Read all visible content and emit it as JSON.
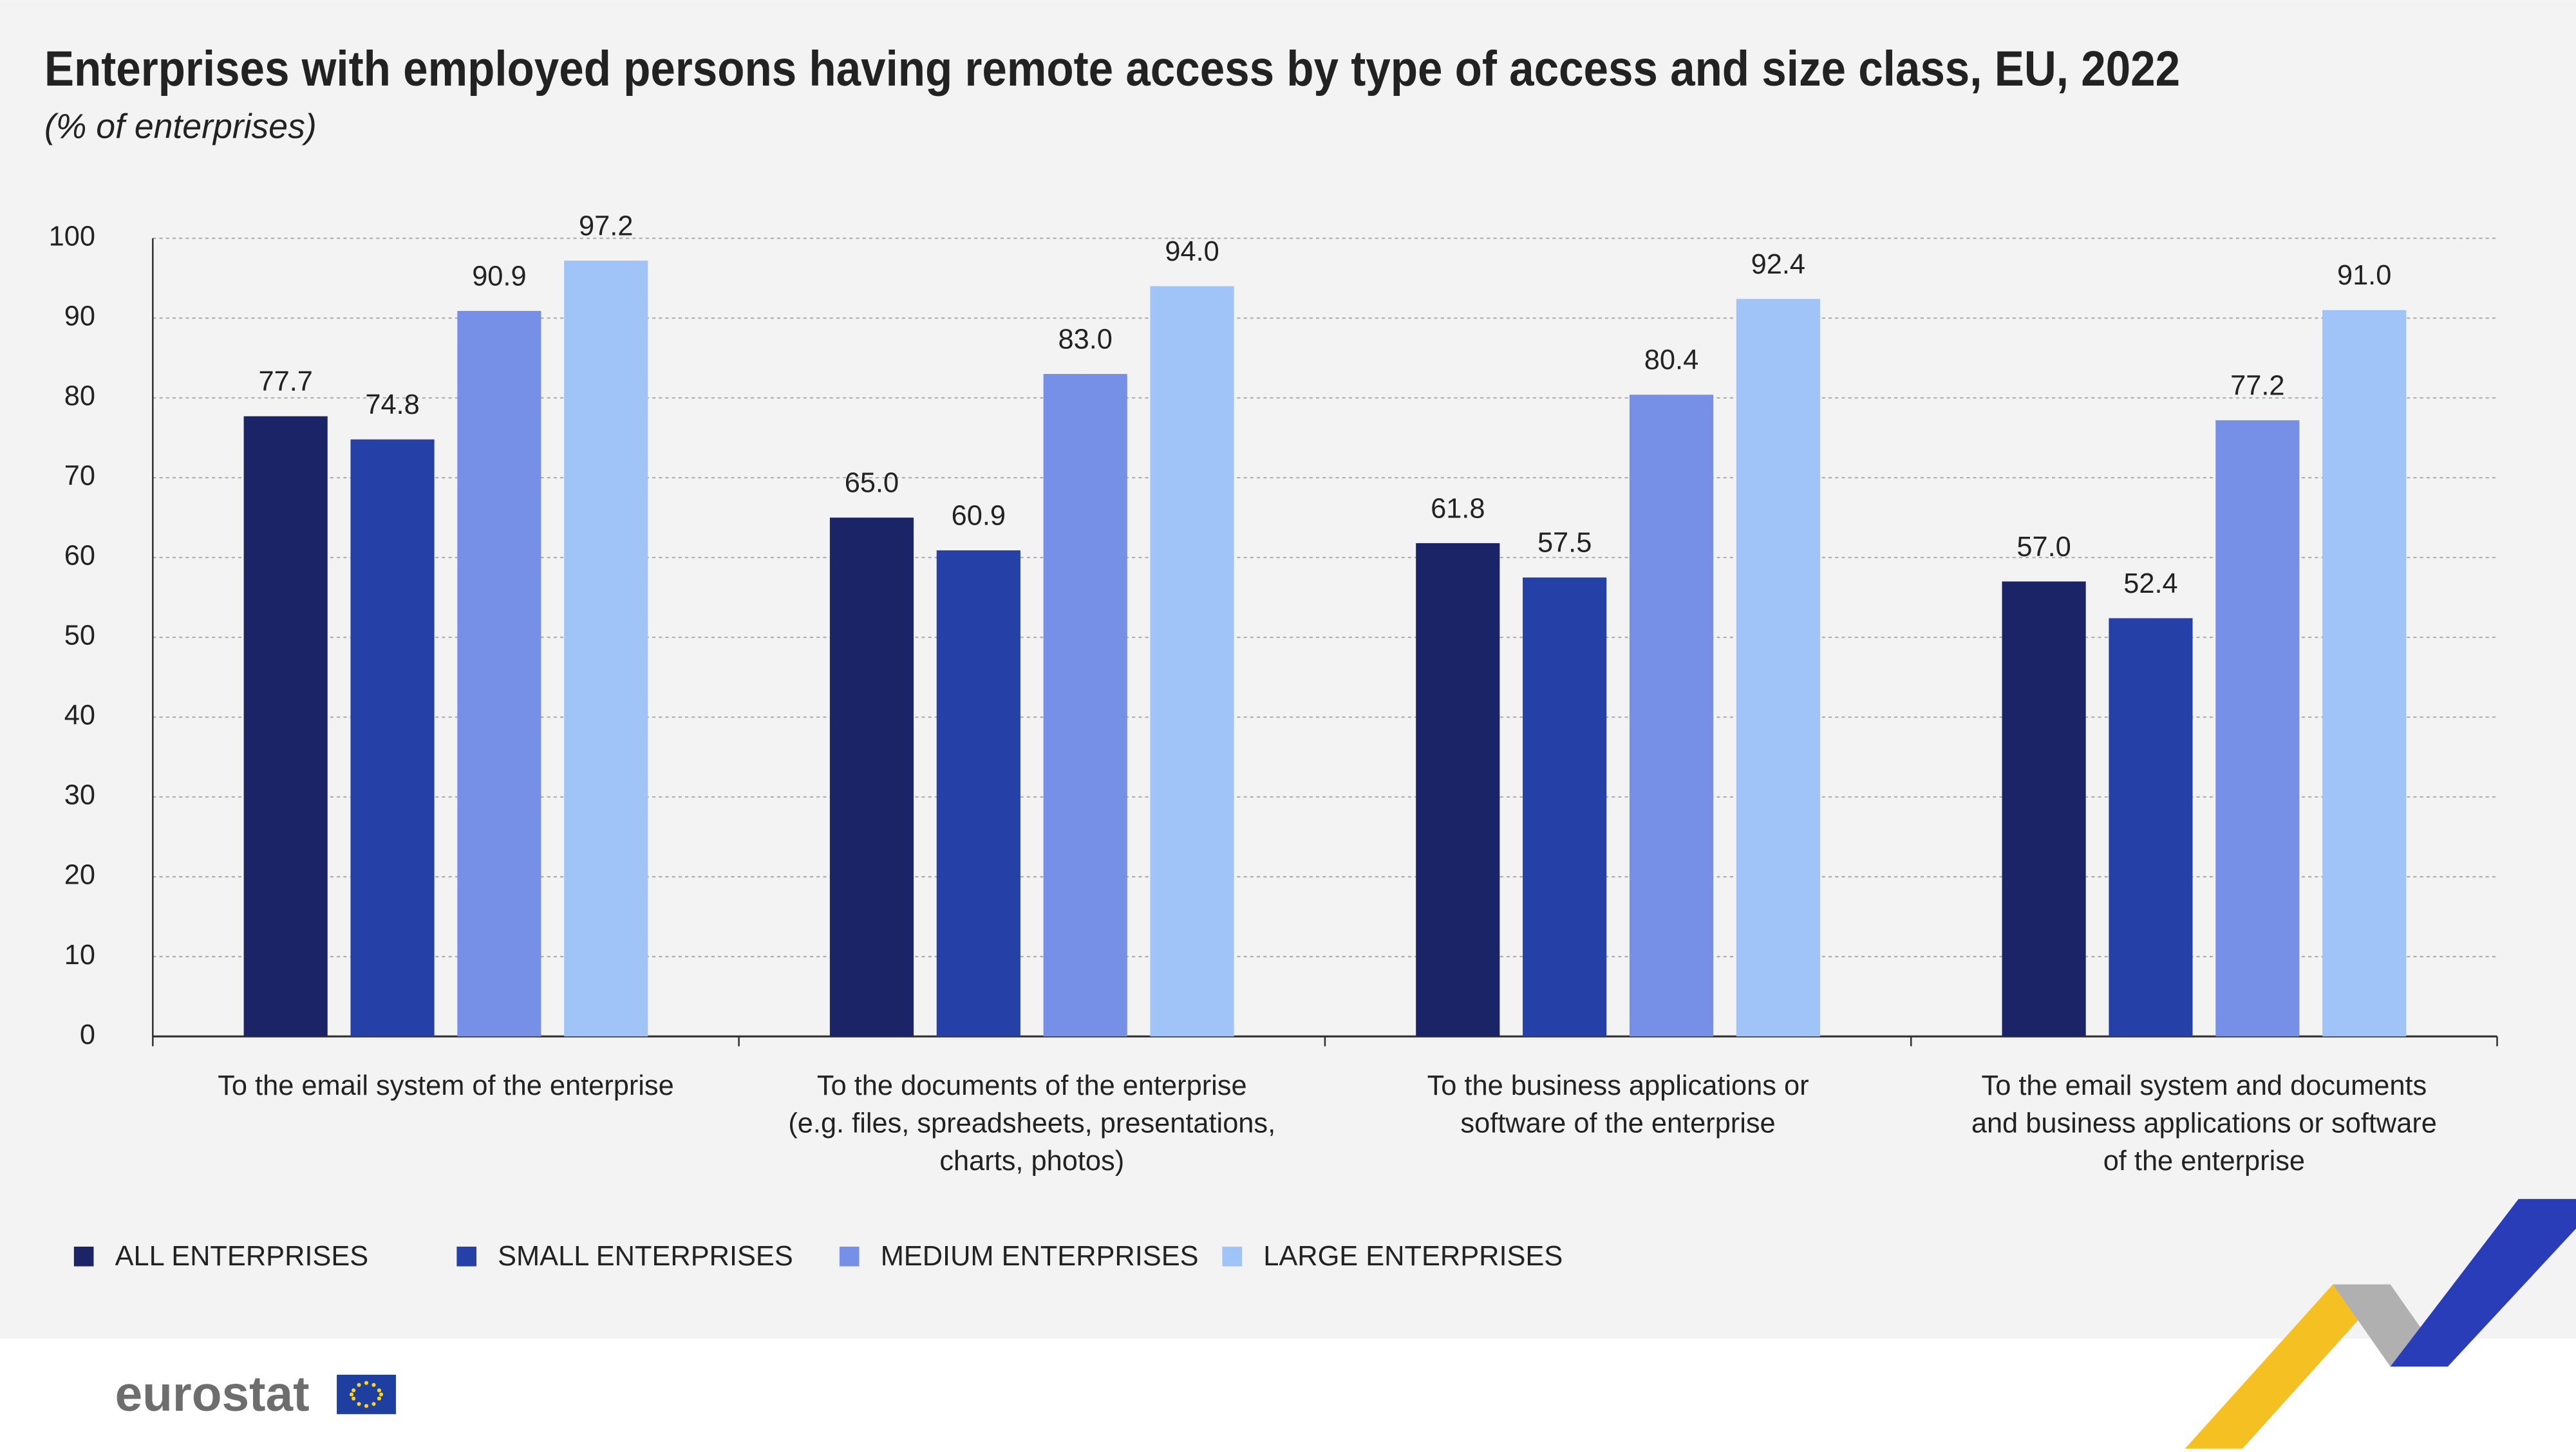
{
  "chart_data": {
    "type": "bar",
    "title": "Enterprises with employed persons having remote access by type of access and size class, EU, 2022",
    "subtitle": "(% of enterprises)",
    "categories": [
      [
        "To the email system of the enterprise"
      ],
      [
        "To the documents of the enterprise",
        "(e.g. files, spreadsheets, presentations,",
        "charts, photos)"
      ],
      [
        "To the business applications or",
        "software of the enterprise"
      ],
      [
        "To the email system and documents",
        "and business applications or software",
        "of the enterprise"
      ]
    ],
    "series": [
      {
        "name": "ALL ENTERPRISES",
        "color": "#1a2466",
        "values": [
          77.7,
          65.0,
          61.8,
          57.0
        ],
        "value_labels": [
          "77.7",
          "65.0",
          "61.8",
          "57.0"
        ]
      },
      {
        "name": "SMALL ENTERPRISES",
        "color": "#2541a8",
        "values": [
          74.8,
          60.9,
          57.5,
          52.4
        ],
        "value_labels": [
          "74.8",
          "60.9",
          "57.5",
          "52.4"
        ]
      },
      {
        "name": "MEDIUM ENTERPRISES",
        "color": "#7590e6",
        "values": [
          90.9,
          83.0,
          80.4,
          77.2
        ],
        "value_labels": [
          "90.9",
          "83.0",
          "80.4",
          "77.2"
        ]
      },
      {
        "name": "LARGE ENTERPRISES",
        "color": "#a0c4f8",
        "values": [
          97.2,
          94.0,
          92.4,
          91.0
        ],
        "value_labels": [
          "97.2",
          "94.0",
          "92.4",
          "91.0"
        ]
      }
    ],
    "ylim": [
      0,
      100
    ],
    "yticks": [
      0,
      10,
      20,
      30,
      40,
      50,
      60,
      70,
      80,
      90,
      100
    ],
    "grid": true,
    "legend": "bottom",
    "logo": "eurostat"
  }
}
